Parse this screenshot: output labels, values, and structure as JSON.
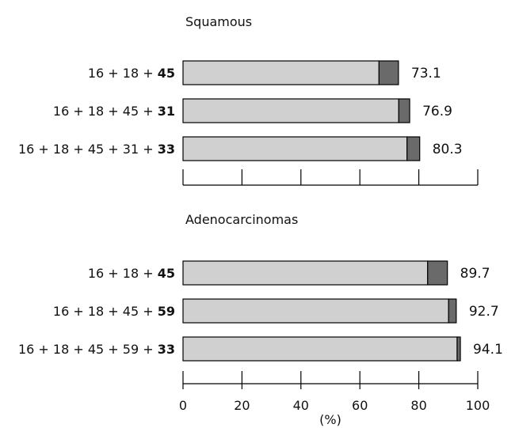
{
  "chart_data": [
    {
      "type": "bar",
      "orientation": "horizontal",
      "stacked": true,
      "title": "Squamous",
      "categories": [
        {
          "base": "16 + 18 + ",
          "added": "45"
        },
        {
          "base": "16 + 18 + 45 + ",
          "added": "31"
        },
        {
          "base": "16 + 18 + 45 + 31 + ",
          "added": "33"
        }
      ],
      "series": [
        {
          "values": [
            66.5,
            73.2,
            76.0
          ],
          "color": "#d0d0d0"
        },
        {
          "values": [
            6.6,
            3.7,
            4.3
          ],
          "color": "#6a6a6a"
        }
      ],
      "totals": [
        "73.1",
        "76.9",
        "80.3"
      ],
      "xlim": [
        0,
        100
      ],
      "grid": false
    },
    {
      "type": "bar",
      "orientation": "horizontal",
      "stacked": true,
      "title": "Adenocarcinomas",
      "categories": [
        {
          "base": "16 + 18 + ",
          "added": "45"
        },
        {
          "base": "16 + 18 + 45 + ",
          "added": "59"
        },
        {
          "base": "16 + 18 + 45 + 59 + ",
          "added": "33"
        }
      ],
      "series": [
        {
          "values": [
            83.0,
            90.1,
            93.0
          ],
          "color": "#d0d0d0"
        },
        {
          "values": [
            6.7,
            2.6,
            1.1
          ],
          "color": "#6a6a6a"
        }
      ],
      "totals": [
        "89.7",
        "92.7",
        "94.1"
      ],
      "xlim": [
        0,
        100
      ],
      "xticks": [
        0,
        20,
        40,
        60,
        80,
        100
      ],
      "xlabel": "(%)",
      "grid": false
    }
  ]
}
